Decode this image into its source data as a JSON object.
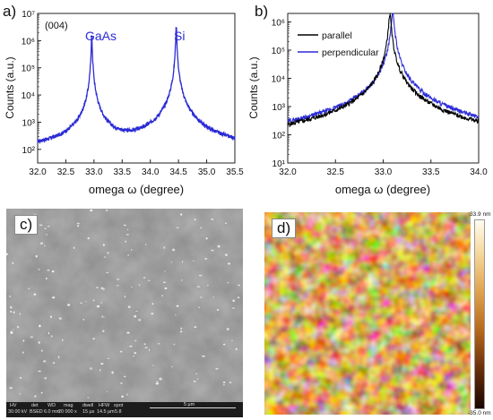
{
  "panels": {
    "a": {
      "letter": "a)"
    },
    "b": {
      "letter": "b)"
    },
    "c": {
      "letter": "c)"
    },
    "d": {
      "letter": "d)"
    }
  },
  "chart_data": [
    {
      "type": "line",
      "panel": "a",
      "annotation": "(004)",
      "peak_labels": [
        {
          "text": "GaAs",
          "x": 32.96
        },
        {
          "text": "Si",
          "x": 34.45
        }
      ],
      "xlabel": "omega ω (degree)",
      "ylabel": "Counts (a.u.)",
      "xlim": [
        32.0,
        35.5
      ],
      "ylim_log10": [
        1.5,
        7
      ],
      "log_y": true,
      "x_ticks": [
        "32.0",
        "32.5",
        "33.0",
        "33.5",
        "34.0",
        "34.5",
        "35.0",
        "35.5"
      ],
      "y_ticks": [
        "10²",
        "10³",
        "10⁴",
        "10⁵",
        "10⁶",
        "10⁷"
      ],
      "series": [
        {
          "color": "#2b2bd6",
          "peaks": [
            {
              "center": 32.96,
              "peak": 1500000,
              "background": 90
            },
            {
              "center": 34.46,
              "peak": 3500000,
              "background": 90
            }
          ]
        }
      ]
    },
    {
      "type": "line",
      "panel": "b",
      "xlabel": "omega ω (degree)",
      "ylabel": "Counts (a.u.)",
      "xlim": [
        32.0,
        34.0
      ],
      "ylim_log10": [
        1,
        6.3
      ],
      "log_y": true,
      "legend": "top-right",
      "x_ticks": [
        "32.0",
        "32.5",
        "33.0",
        "33.5",
        "34.0"
      ],
      "y_ticks": [
        "10¹",
        "10²",
        "10³",
        "10⁴",
        "10⁵",
        "10⁶"
      ],
      "series": [
        {
          "name": "parallel",
          "color": "#000000",
          "center": 33.07,
          "peak": 1900000,
          "background": 35
        },
        {
          "name": "perpendicular",
          "color": "#2b2bd6",
          "center": 33.1,
          "peak": 1900000,
          "background": 40
        }
      ]
    }
  ],
  "sem": {
    "labels": [
      "HV",
      "det",
      "WD",
      "mag",
      "dwell",
      "HFW",
      "spot"
    ],
    "values": [
      "30.00 kV",
      "BSED",
      "6.0 mm",
      "20 000 x",
      "15 µs",
      "14.5 µm",
      "5.8"
    ],
    "scale": "5 µm"
  },
  "afm": {
    "max_label": "33.9 nm",
    "min_label": "-35.0 nm"
  }
}
